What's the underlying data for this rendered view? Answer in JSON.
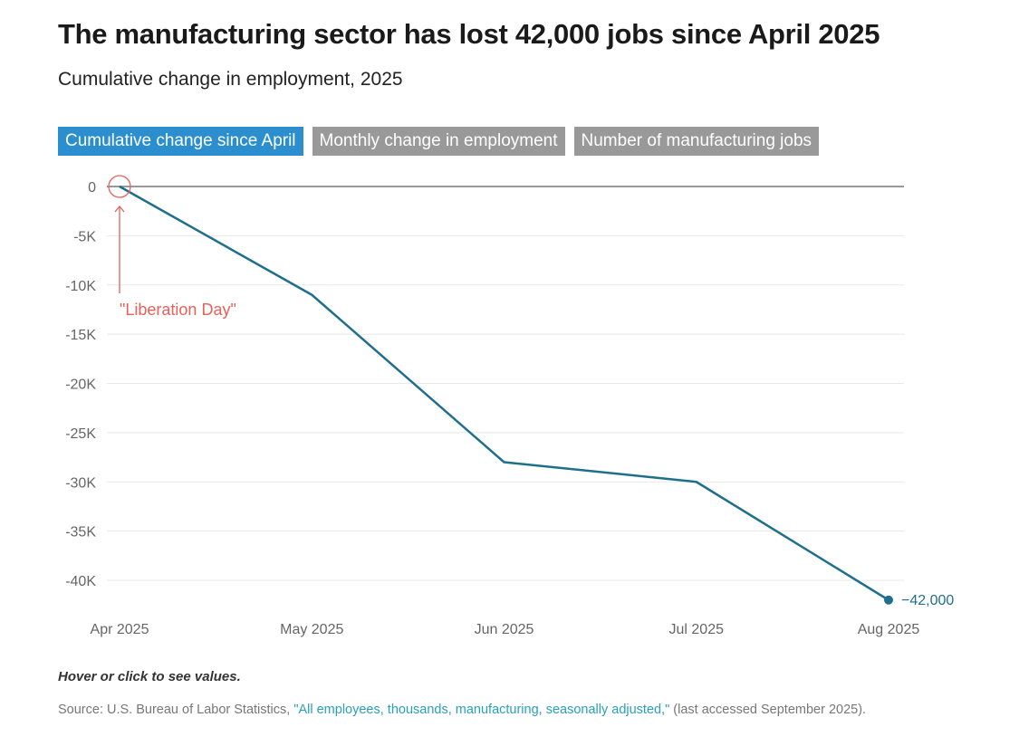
{
  "title": "The manufacturing sector has lost 42,000 jobs since April 2025",
  "subtitle": "Cumulative change in employment, 2025",
  "tabs": [
    {
      "label": "Cumulative change since April",
      "active": true
    },
    {
      "label": "Monthly change in employment",
      "active": false
    },
    {
      "label": "Number of manufacturing jobs",
      "active": false
    }
  ],
  "note": "Hover or click to see values.",
  "source": {
    "prefix": "Source: U.S. Bureau of Labor Statistics, ",
    "link": "\"All employees, thousands, manufacturing, seasonally adjusted,\"",
    "suffix": " (last accessed September 2025)."
  },
  "chart_data": {
    "type": "line",
    "title": "The manufacturing sector has lost 42,000 jobs since April 2025",
    "subtitle": "Cumulative change in employment, 2025",
    "categories": [
      "Apr 2025",
      "May 2025",
      "Jun 2025",
      "Jul 2025",
      "Aug 2025"
    ],
    "values": [
      0,
      -11000,
      -28000,
      -30000,
      -42000
    ],
    "ylim": [
      -42000,
      0
    ],
    "yticks": [
      0,
      -5000,
      -10000,
      -15000,
      -20000,
      -25000,
      -30000,
      -35000,
      -40000
    ],
    "ytick_labels": [
      "0",
      "-5K",
      "-10K",
      "-15K",
      "-20K",
      "-25K",
      "-30K",
      "-35K",
      "-40K"
    ],
    "grid": true,
    "end_label": "−42,000",
    "annotation": {
      "text": "\"Liberation Day\"",
      "category": "Apr 2025",
      "color": "#e8605a"
    },
    "colors": {
      "line": "#1e6f8c",
      "zero_line": "#999999",
      "grid": "#e8e8e8",
      "axis_text": "#666666"
    }
  }
}
